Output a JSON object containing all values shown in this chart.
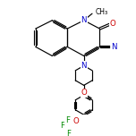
{
  "bg_color": "#ffffff",
  "bond_color": "#000000",
  "atom_colors": {
    "N": "#0000cc",
    "O": "#cc0000",
    "F": "#008800",
    "C": "#000000"
  },
  "figsize": [
    1.52,
    1.52
  ],
  "dpi": 100,
  "lw": 0.85,
  "fs": 6.2,
  "fs_small": 5.5
}
